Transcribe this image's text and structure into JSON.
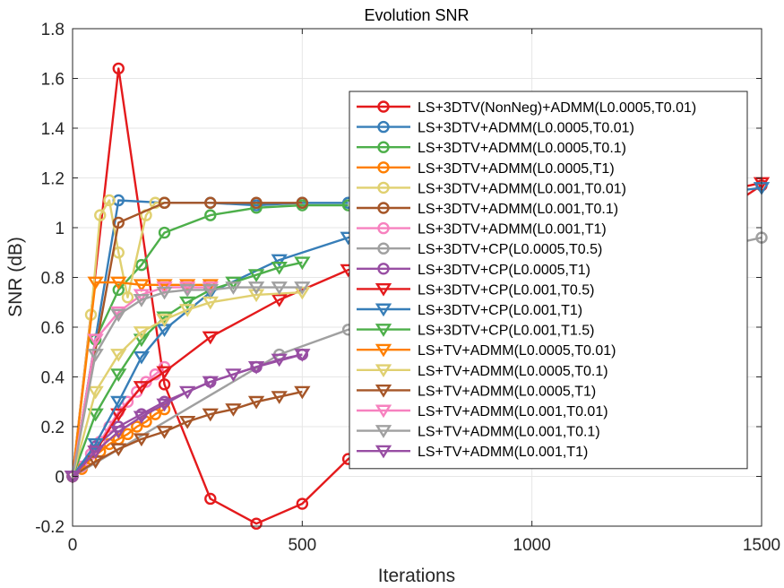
{
  "chart_data": {
    "type": "line",
    "title": "Evolution SNR",
    "xlabel": "Iterations",
    "ylabel": "SNR (dB)",
    "xlim": [
      0,
      1500
    ],
    "ylim": [
      -0.2,
      1.8
    ],
    "xticks": [
      0,
      500,
      1000,
      1500
    ],
    "yticks": [
      -0.2,
      0,
      0.2,
      0.4,
      0.6,
      0.8,
      1,
      1.2,
      1.4,
      1.6,
      1.8
    ],
    "xtick_labels": [
      "0",
      "500",
      "1000",
      "1500"
    ],
    "ytick_labels": [
      "-0.2",
      "0",
      "0.2",
      "0.4",
      "0.6",
      "0.8",
      "1",
      "1.2",
      "1.4",
      "1.6",
      "1.8"
    ],
    "grid": true,
    "legend_position": "right",
    "series": [
      {
        "name": "LS+3DTV(NonNeg)+ADMM(L0.0005,T0.01)",
        "color": "#e41a1c",
        "marker": "circle",
        "x": [
          0,
          100,
          200,
          300,
          400,
          500,
          600,
          1500
        ],
        "y": [
          0,
          1.64,
          0.37,
          -0.09,
          -0.19,
          -0.11,
          0.07,
          1.17
        ]
      },
      {
        "name": "LS+3DTV+ADMM(L0.0005,T0.01)",
        "color": "#377eb8",
        "marker": "circle",
        "x": [
          0,
          100,
          200,
          300,
          400,
          500,
          600
        ],
        "y": [
          0,
          1.11,
          1.1,
          1.1,
          1.09,
          1.1,
          1.1
        ]
      },
      {
        "name": "LS+3DTV+ADMM(L0.0005,T0.1)",
        "color": "#4daf4a",
        "marker": "circle",
        "x": [
          0,
          50,
          100,
          150,
          200,
          300,
          400,
          500,
          600
        ],
        "y": [
          0,
          0.55,
          0.75,
          0.85,
          0.98,
          1.05,
          1.08,
          1.09,
          1.09
        ]
      },
      {
        "name": "LS+3DTV+ADMM(L0.0005,T1)",
        "color": "#ff7f00",
        "marker": "circle",
        "x": [
          0,
          20,
          40,
          60,
          80,
          100,
          120,
          140,
          160,
          180,
          200
        ],
        "y": [
          0,
          0.03,
          0.07,
          0.1,
          0.13,
          0.15,
          0.17,
          0.2,
          0.22,
          0.25,
          0.27
        ]
      },
      {
        "name": "LS+3DTV+ADMM(L0.001,T0.01)",
        "color": "#e0d070",
        "marker": "circle",
        "x": [
          0,
          40,
          60,
          80,
          100,
          120,
          160,
          180,
          200
        ],
        "y": [
          0,
          0.65,
          1.05,
          1.11,
          0.9,
          0.72,
          1.05,
          1.1,
          1.1
        ]
      },
      {
        "name": "LS+3DTV+ADMM(L0.001,T0.1)",
        "color": "#a65628",
        "marker": "circle",
        "x": [
          0,
          100,
          200,
          300,
          400,
          500
        ],
        "y": [
          0,
          1.02,
          1.1,
          1.1,
          1.1,
          1.1
        ]
      },
      {
        "name": "LS+3DTV+ADMM(L0.001,T1)",
        "color": "#f781bf",
        "marker": "circle",
        "x": [
          0,
          20,
          40,
          60,
          80,
          100,
          120,
          140,
          160,
          180,
          200
        ],
        "y": [
          0,
          0.04,
          0.09,
          0.14,
          0.2,
          0.26,
          0.3,
          0.34,
          0.38,
          0.41,
          0.44
        ]
      },
      {
        "name": "LS+3DTV+CP(L0.0005,T0.5)",
        "color": "#a0a0a0",
        "marker": "circle",
        "x": [
          0,
          450,
          600,
          1500
        ],
        "y": [
          0,
          0.49,
          0.59,
          0.96
        ]
      },
      {
        "name": "LS+3DTV+CP(L0.0005,T1)",
        "color": "#984ea3",
        "marker": "circle",
        "x": [
          0,
          50,
          100,
          150,
          200,
          300,
          400,
          500
        ],
        "y": [
          0,
          0.12,
          0.2,
          0.25,
          0.3,
          0.38,
          0.44,
          0.49
        ]
      },
      {
        "name": "LS+3DTV+CP(L0.001,T0.5)",
        "color": "#e41a1c",
        "marker": "triangle",
        "x": [
          0,
          50,
          100,
          150,
          200,
          300,
          450,
          600,
          1500
        ],
        "y": [
          0,
          0.1,
          0.25,
          0.36,
          0.42,
          0.56,
          0.71,
          0.83,
          1.18
        ]
      },
      {
        "name": "LS+3DTV+CP(L0.001,T1)",
        "color": "#377eb8",
        "marker": "triangle",
        "x": [
          0,
          50,
          100,
          150,
          200,
          300,
          450,
          600,
          1500
        ],
        "y": [
          0,
          0.13,
          0.3,
          0.48,
          0.59,
          0.74,
          0.87,
          0.96,
          1.16
        ]
      },
      {
        "name": "LS+3DTV+CP(L0.001,T1.5)",
        "color": "#4daf4a",
        "marker": "triangle",
        "x": [
          0,
          50,
          100,
          150,
          200,
          250,
          300,
          350,
          400,
          450,
          500
        ],
        "y": [
          0,
          0.25,
          0.41,
          0.55,
          0.64,
          0.7,
          0.75,
          0.78,
          0.81,
          0.84,
          0.86
        ]
      },
      {
        "name": "LS+TV+ADMM(L0.0005,T0.01)",
        "color": "#ff7f00",
        "marker": "triangle",
        "x": [
          0,
          50,
          100,
          150,
          200,
          250,
          300
        ],
        "y": [
          0,
          0.78,
          0.78,
          0.77,
          0.77,
          0.77,
          0.77
        ]
      },
      {
        "name": "LS+TV+ADMM(L0.0005,T0.1)",
        "color": "#e0d070",
        "marker": "triangle",
        "x": [
          0,
          50,
          100,
          150,
          200,
          250,
          300,
          400,
          500
        ],
        "y": [
          0,
          0.34,
          0.49,
          0.58,
          0.63,
          0.67,
          0.7,
          0.73,
          0.74
        ]
      },
      {
        "name": "LS+TV+ADMM(L0.0005,T1)",
        "color": "#a65628",
        "marker": "triangle",
        "x": [
          0,
          50,
          100,
          150,
          200,
          250,
          300,
          350,
          400,
          450,
          500
        ],
        "y": [
          0,
          0.06,
          0.11,
          0.15,
          0.18,
          0.22,
          0.25,
          0.27,
          0.3,
          0.32,
          0.34
        ]
      },
      {
        "name": "LS+TV+ADMM(L0.001,T0.01)",
        "color": "#f781bf",
        "marker": "triangle",
        "x": [
          0,
          50,
          100,
          150,
          200,
          250,
          300
        ],
        "y": [
          0,
          0.55,
          0.66,
          0.73,
          0.76,
          0.76,
          0.76
        ]
      },
      {
        "name": "LS+TV+ADMM(L0.001,T0.1)",
        "color": "#a0a0a0",
        "marker": "triangle",
        "x": [
          0,
          50,
          100,
          150,
          200,
          250,
          300,
          350,
          400,
          450,
          500
        ],
        "y": [
          0,
          0.49,
          0.65,
          0.71,
          0.74,
          0.75,
          0.75,
          0.76,
          0.76,
          0.76,
          0.76
        ]
      },
      {
        "name": "LS+TV+ADMM(L0.001,T1)",
        "color": "#984ea3",
        "marker": "triangle",
        "x": [
          0,
          50,
          100,
          150,
          200,
          250,
          300,
          350,
          400,
          450,
          500
        ],
        "y": [
          0,
          0.1,
          0.18,
          0.24,
          0.29,
          0.34,
          0.38,
          0.41,
          0.44,
          0.47,
          0.49
        ]
      }
    ]
  }
}
